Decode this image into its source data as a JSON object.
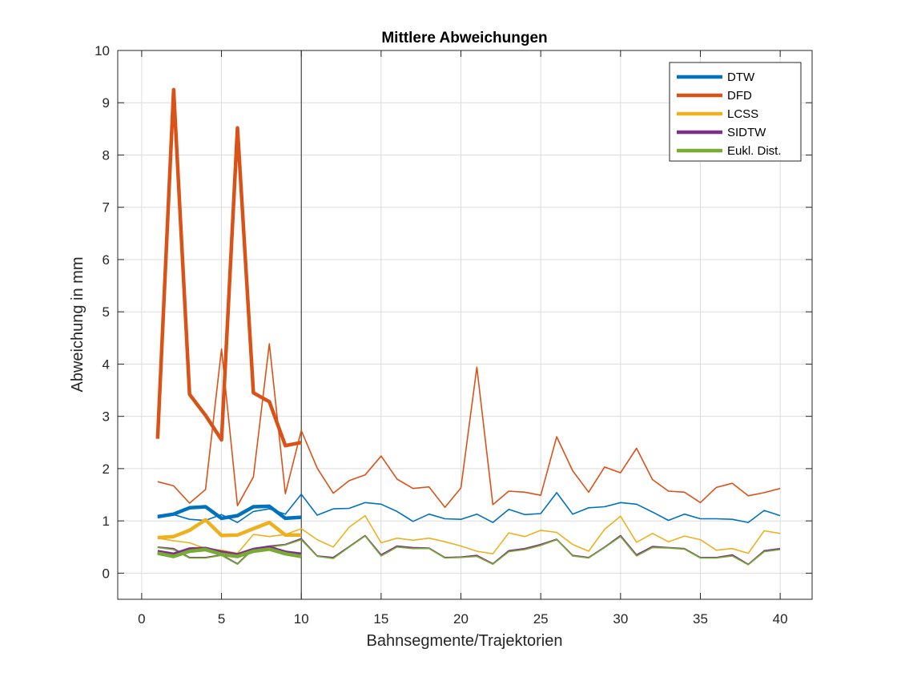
{
  "chart_data": {
    "type": "line",
    "title": "Mittlere Abweichungen",
    "xlabel": "Bahnsegmente/Trajektorien",
    "ylabel": "Abweichung in mm",
    "xlim": [
      -1.5,
      42
    ],
    "ylim": [
      -0.5,
      10
    ],
    "xticks": [
      0,
      5,
      10,
      15,
      20,
      25,
      30,
      35,
      40
    ],
    "yticks": [
      0,
      1,
      2,
      3,
      4,
      5,
      6,
      7,
      8,
      9,
      10
    ],
    "grid": true,
    "legend_position": "top-right",
    "vline_x": 10,
    "series": [
      {
        "name": "DTW",
        "color": "#0072BD",
        "segments_x": [
          1,
          2,
          3,
          4,
          5,
          6,
          7,
          8,
          9,
          10
        ],
        "segments": [
          1.08,
          1.13,
          1.25,
          1.27,
          1.05,
          1.1,
          1.27,
          1.28,
          1.05,
          1.07
        ],
        "trajectories_x": [
          1,
          2,
          3,
          4,
          5,
          6,
          7,
          8,
          9,
          10,
          11,
          12,
          13,
          14,
          15,
          16,
          17,
          18,
          19,
          20,
          21,
          22,
          23,
          24,
          25,
          26,
          27,
          28,
          29,
          30,
          31,
          32,
          33,
          34,
          35,
          36,
          37,
          38,
          39,
          40
        ],
        "trajectories": [
          1.06,
          1.12,
          1.03,
          1.01,
          1.12,
          0.97,
          1.18,
          1.23,
          1.13,
          1.51,
          1.11,
          1.23,
          1.24,
          1.35,
          1.32,
          1.18,
          0.99,
          1.13,
          1.04,
          1.03,
          1.13,
          0.97,
          1.22,
          1.12,
          1.14,
          1.54,
          1.13,
          1.25,
          1.27,
          1.35,
          1.32,
          1.17,
          1.01,
          1.13,
          1.04,
          1.04,
          1.03,
          0.97,
          1.2,
          1.1
        ]
      },
      {
        "name": "DFD",
        "color": "#D95319",
        "segments_x": [
          1,
          2,
          3,
          4,
          5,
          6,
          7,
          8,
          9,
          10
        ],
        "segments": [
          2.57,
          9.25,
          3.42,
          3.02,
          2.55,
          8.52,
          3.45,
          3.28,
          2.44,
          2.5
        ],
        "trajectories_x": [
          1,
          2,
          3,
          4,
          5,
          6,
          7,
          8,
          9,
          10,
          11,
          12,
          13,
          14,
          15,
          16,
          17,
          18,
          19,
          20,
          21,
          22,
          23,
          24,
          25,
          26,
          27,
          28,
          29,
          30,
          31,
          32,
          33,
          34,
          35,
          36,
          37,
          38,
          39,
          40
        ],
        "trajectories": [
          1.75,
          1.67,
          1.34,
          1.6,
          4.29,
          1.29,
          1.84,
          4.39,
          1.52,
          2.73,
          2.01,
          1.53,
          1.77,
          1.88,
          2.24,
          1.8,
          1.62,
          1.65,
          1.26,
          1.63,
          3.94,
          1.31,
          1.57,
          1.55,
          1.49,
          2.61,
          1.96,
          1.55,
          2.03,
          1.92,
          2.39,
          1.79,
          1.57,
          1.55,
          1.35,
          1.64,
          1.72,
          1.48,
          1.54,
          1.62
        ]
      },
      {
        "name": "LCSS",
        "color": "#EDB120",
        "segments_x": [
          1,
          2,
          3,
          4,
          5,
          6,
          7,
          8,
          9,
          10
        ],
        "segments": [
          0.68,
          0.7,
          0.82,
          1.02,
          0.72,
          0.73,
          0.85,
          0.97,
          0.73,
          0.73
        ],
        "trajectories_x": [
          1,
          2,
          3,
          4,
          5,
          6,
          7,
          8,
          9,
          10,
          11,
          12,
          13,
          14,
          15,
          16,
          17,
          18,
          19,
          20,
          21,
          22,
          23,
          24,
          25,
          26,
          27,
          28,
          29,
          30,
          31,
          32,
          33,
          34,
          35,
          36,
          37,
          38,
          39,
          40
        ],
        "trajectories": [
          0.67,
          0.62,
          0.58,
          0.47,
          0.44,
          0.38,
          0.74,
          0.7,
          0.74,
          0.85,
          0.64,
          0.5,
          0.88,
          1.1,
          0.58,
          0.67,
          0.63,
          0.67,
          0.6,
          0.52,
          0.42,
          0.37,
          0.77,
          0.7,
          0.82,
          0.78,
          0.55,
          0.42,
          0.84,
          1.09,
          0.59,
          0.76,
          0.6,
          0.71,
          0.64,
          0.44,
          0.47,
          0.38,
          0.81,
          0.76
        ]
      },
      {
        "name": "SIDTW",
        "color": "#7E2F8E",
        "segments_x": [
          1,
          2,
          3,
          4,
          5,
          6,
          7,
          8,
          9,
          10
        ],
        "segments": [
          0.41,
          0.36,
          0.46,
          0.47,
          0.4,
          0.35,
          0.45,
          0.49,
          0.4,
          0.36
        ],
        "trajectories_x": [
          1,
          2,
          3,
          4,
          5,
          6,
          7,
          8,
          9,
          10,
          11,
          12,
          13,
          14,
          15,
          16,
          17,
          18,
          19,
          20,
          21,
          22,
          23,
          24,
          25,
          26,
          27,
          28,
          29,
          30,
          31,
          32,
          33,
          34,
          35,
          36,
          37,
          38,
          39,
          40
        ],
        "trajectories": [
          0.5,
          0.47,
          0.3,
          0.3,
          0.35,
          0.18,
          0.47,
          0.52,
          0.55,
          0.66,
          0.33,
          0.3,
          0.51,
          0.72,
          0.35,
          0.52,
          0.49,
          0.48,
          0.3,
          0.31,
          0.34,
          0.18,
          0.43,
          0.47,
          0.55,
          0.65,
          0.34,
          0.3,
          0.5,
          0.72,
          0.35,
          0.51,
          0.49,
          0.47,
          0.3,
          0.3,
          0.35,
          0.17,
          0.43,
          0.47
        ]
      },
      {
        "name": "Eukl. Dist.",
        "color": "#77AC30",
        "segments_x": [
          1,
          2,
          3,
          4,
          5,
          6,
          7,
          8,
          9,
          10
        ],
        "segments": [
          0.38,
          0.32,
          0.42,
          0.45,
          0.36,
          0.32,
          0.42,
          0.46,
          0.37,
          0.32
        ],
        "trajectories_x": [
          1,
          2,
          3,
          4,
          5,
          6,
          7,
          8,
          9,
          10,
          11,
          12,
          13,
          14,
          15,
          16,
          17,
          18,
          19,
          20,
          21,
          22,
          23,
          24,
          25,
          26,
          27,
          28,
          29,
          30,
          31,
          32,
          33,
          34,
          35,
          36,
          37,
          38,
          39,
          40
        ],
        "trajectories": [
          0.49,
          0.45,
          0.29,
          0.29,
          0.34,
          0.17,
          0.46,
          0.5,
          0.54,
          0.64,
          0.32,
          0.28,
          0.5,
          0.71,
          0.33,
          0.5,
          0.47,
          0.47,
          0.29,
          0.3,
          0.32,
          0.17,
          0.41,
          0.45,
          0.53,
          0.64,
          0.33,
          0.29,
          0.49,
          0.7,
          0.33,
          0.49,
          0.48,
          0.46,
          0.29,
          0.29,
          0.33,
          0.16,
          0.41,
          0.45
        ]
      }
    ]
  }
}
